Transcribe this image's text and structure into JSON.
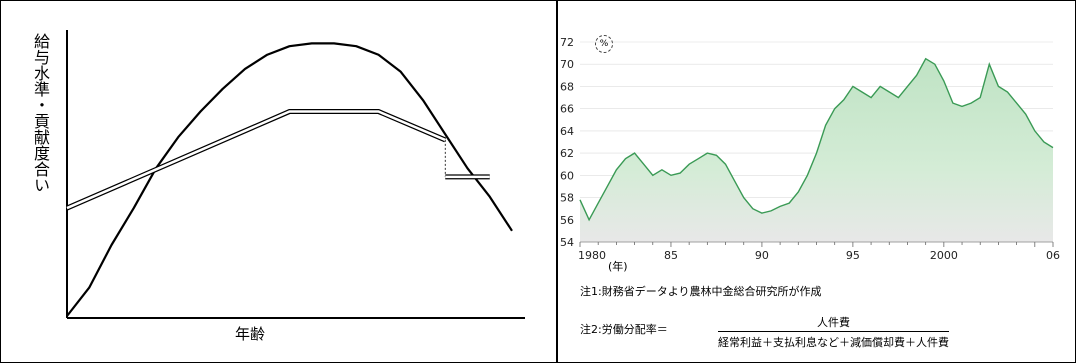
{
  "chart_data": [
    {
      "type": "line",
      "title": "",
      "xlabel": "年齢",
      "ylabel": "給与水準・貢献度合い",
      "series": [
        {
          "values": [
            [
              0,
              0
            ],
            [
              5,
              10
            ],
            [
              10,
              25
            ],
            [
              15,
              38
            ],
            [
              20,
              52
            ],
            [
              25,
              63
            ],
            [
              30,
              72
            ],
            [
              35,
              80
            ],
            [
              40,
              87
            ],
            [
              45,
              92
            ],
            [
              50,
              95
            ],
            [
              55,
              96
            ],
            [
              60,
              96
            ],
            [
              65,
              95
            ],
            [
              70,
              92
            ],
            [
              75,
              86
            ],
            [
              80,
              76
            ],
            [
              85,
              64
            ],
            [
              90,
              52
            ],
            [
              95,
              42
            ],
            [
              100,
              30
            ]
          ]
        },
        {
          "values": [
            [
              0,
              38
            ],
            [
              25,
              55
            ],
            [
              50,
              72
            ],
            [
              70,
              72
            ],
            [
              85,
              62
            ],
            [
              85,
              49
            ],
            [
              95,
              49
            ]
          ]
        }
      ]
    },
    {
      "type": "area",
      "title": "",
      "unit": "%",
      "xlabel": "(年)",
      "ylim": [
        54,
        72
      ],
      "yticks": [
        "54",
        "56",
        "58",
        "60",
        "62",
        "64",
        "66",
        "68",
        "70",
        "72"
      ],
      "xticks": [
        "1980",
        "85",
        "90",
        "95",
        "2000",
        "06"
      ],
      "x": [
        1980.0,
        1980.5,
        1981.0,
        1981.5,
        1982.0,
        1982.5,
        1983.0,
        1983.5,
        1984.0,
        1984.5,
        1985.0,
        1985.5,
        1986.0,
        1986.5,
        1987.0,
        1987.5,
        1988.0,
        1988.5,
        1989.0,
        1989.5,
        1990.0,
        1990.5,
        1991.0,
        1991.5,
        1992.0,
        1992.5,
        1993.0,
        1993.5,
        1994.0,
        1994.5,
        1995.0,
        1995.5,
        1996.0,
        1996.5,
        1997.0,
        1997.5,
        1998.0,
        1998.5,
        1999.0,
        1999.5,
        2000.0,
        2000.5,
        2001.0,
        2001.5,
        2002.0,
        2002.5,
        2003.0,
        2003.5,
        2004.0,
        2004.5,
        2005.0,
        2005.5,
        2006.0
      ],
      "series": [
        {
          "values": [
            57.8,
            56.0,
            57.5,
            59.0,
            60.5,
            61.5,
            62.0,
            61.0,
            60.0,
            60.5,
            60.0,
            60.2,
            61.0,
            61.5,
            62.0,
            61.8,
            61.0,
            59.5,
            58.0,
            57.0,
            56.6,
            56.8,
            57.2,
            57.5,
            58.5,
            60.0,
            62.0,
            64.5,
            66.0,
            66.8,
            68.0,
            67.5,
            67.0,
            68.0,
            67.5,
            67.0,
            68.0,
            69.0,
            70.5,
            70.0,
            68.5,
            66.5,
            66.2,
            66.5,
            67.0,
            70.0,
            68.0,
            67.5,
            66.5,
            65.5,
            64.0,
            63.0,
            62.5
          ]
        }
      ],
      "notes": [
        "注1:財務省データより農林中金総合研究所が作成"
      ],
      "formula": {
        "prefix": "注2:労働分配率＝",
        "numerator": "人件費",
        "denominator": "経常利益＋支払利息など＋減価償却費＋人件費"
      }
    }
  ]
}
